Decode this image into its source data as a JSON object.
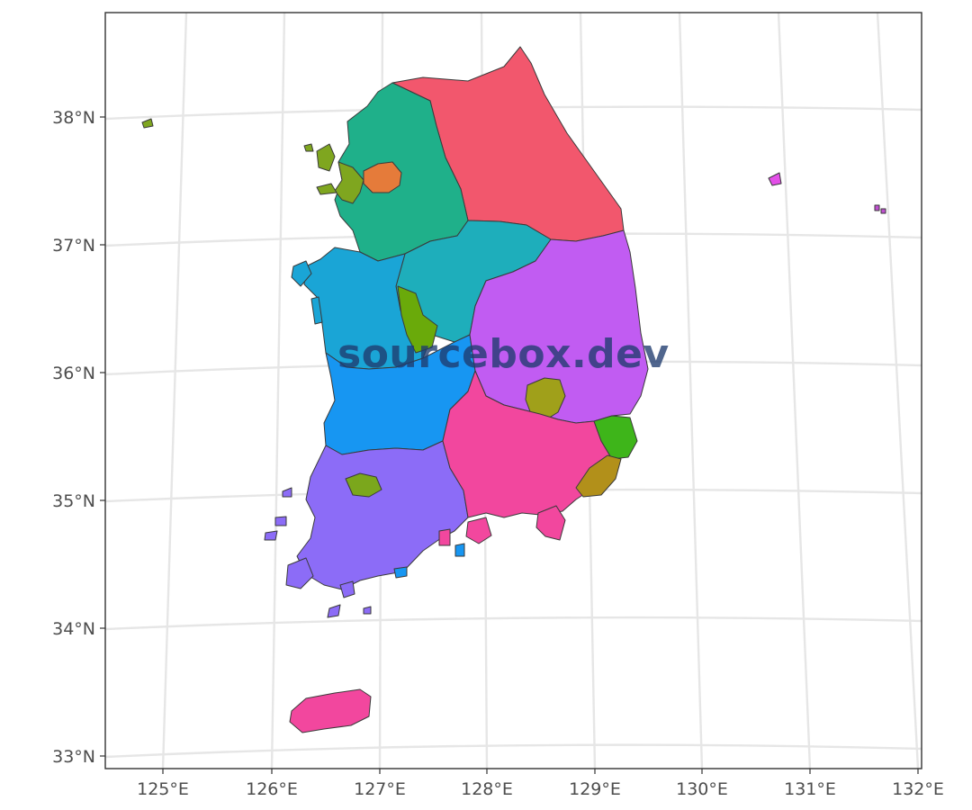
{
  "map": {
    "watermark": "sourcebox.dev",
    "lat_ticks": [
      "38°N",
      "37°N",
      "36°N",
      "35°N",
      "34°N",
      "33°N"
    ],
    "lon_ticks": [
      "125°E",
      "126°E",
      "127°E",
      "128°E",
      "129°E",
      "130°E",
      "131°E",
      "132°E"
    ],
    "colors": {
      "gangwon": "#f2576d",
      "gyeonggi": "#1fb08a",
      "seoul": "#e57b3a",
      "incheon": "#7fa61f",
      "chungbuk": "#1eaebb",
      "chungnam": "#1aa5d6",
      "daejeon_sejong": "#6aaa0a",
      "jeonbuk": "#1796f2",
      "jeonnam": "#8c6cf7",
      "gwangju": "#7ba71c",
      "gyeongbuk": "#c15cf2",
      "daegu": "#a0a01a",
      "gyeongnam": "#f2479e",
      "ulsan": "#3eb51a",
      "busan": "#b2901a",
      "jeju": "#f2479e",
      "ulleungdo": "#e34fe8",
      "dokdo": "#c050d0"
    }
  }
}
